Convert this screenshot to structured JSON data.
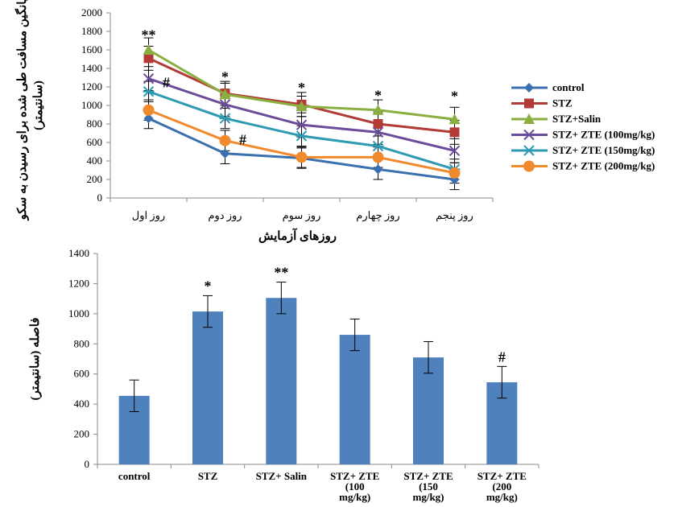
{
  "chart_data": [
    {
      "type": "line",
      "ylabel_lines": [
        "میانگین مسافت طی شده برای رسیدن به سکو",
        "(سانتیمتر)"
      ],
      "xlabel": "روزهای آزمایش",
      "ylim": [
        0,
        2000
      ],
      "yticks": [
        0,
        200,
        400,
        600,
        800,
        1000,
        1200,
        1400,
        1600,
        1800,
        2000
      ],
      "categories": [
        "روز اول",
        "روز دوم",
        "روز سوم",
        "روز چهارم",
        "روز پنجم"
      ],
      "legend_position": "right",
      "series": [
        {
          "name": "control",
          "color": "#3A6FB0",
          "marker": "diamond",
          "values": [
            860,
            480,
            430,
            310,
            200
          ],
          "errors": [
            110,
            110,
            110,
            110,
            110
          ]
        },
        {
          "name": "STZ",
          "color": "#B23B38",
          "marker": "square",
          "values": [
            1510,
            1130,
            1010,
            800,
            710
          ],
          "errors": [
            130,
            130,
            130,
            130,
            130
          ]
        },
        {
          "name": "STZ+Salin",
          "color": "#8AAE3F",
          "marker": "triangle",
          "values": [
            1600,
            1120,
            990,
            950,
            850
          ],
          "errors": [
            130,
            120,
            110,
            110,
            130
          ]
        },
        {
          "name": "STZ+ ZTE (100mg/kg)",
          "color": "#6B4C9A",
          "marker": "x",
          "values": [
            1290,
            1010,
            790,
            710,
            510
          ],
          "errors": [
            130,
            130,
            130,
            130,
            130
          ]
        },
        {
          "name": "STZ+ ZTE (150mg/kg)",
          "color": "#2F9BB3",
          "marker": "star",
          "values": [
            1150,
            860,
            670,
            560,
            310
          ],
          "errors": [
            110,
            110,
            110,
            110,
            110
          ]
        },
        {
          "name": "STZ+ ZTE (200mg/kg)",
          "color": "#F08A2C",
          "marker": "circle",
          "values": [
            950,
            620,
            440,
            440,
            270
          ],
          "errors": [
            110,
            110,
            110,
            110,
            110
          ]
        }
      ],
      "annotations": [
        {
          "category": 0,
          "value": 1760,
          "text": "**"
        },
        {
          "category": 1,
          "value": 1310,
          "text": "*"
        },
        {
          "category": 2,
          "value": 1190,
          "text": "*"
        },
        {
          "category": 3,
          "value": 1110,
          "text": "*"
        },
        {
          "category": 4,
          "value": 1100,
          "text": "*"
        },
        {
          "category": 0,
          "value": 1250,
          "text": "#",
          "offset": "right"
        },
        {
          "category": 1,
          "value": 630,
          "text": "#",
          "offset": "right"
        }
      ]
    },
    {
      "type": "bar",
      "ylabel": "فاصله (سانتیمتر)",
      "ylim": [
        0,
        1400
      ],
      "yticks": [
        0,
        200,
        400,
        600,
        800,
        1000,
        1200,
        1400
      ],
      "color": "#4F81BD",
      "categories": [
        [
          "control"
        ],
        [
          "STZ"
        ],
        [
          "STZ+ Salin"
        ],
        [
          "STZ+ ZTE",
          "(100",
          "mg/kg)"
        ],
        [
          "STZ+ ZTE",
          "(150",
          "mg/kg)"
        ],
        [
          "STZ+ ZTE",
          "(200",
          "mg/kg)"
        ]
      ],
      "values": [
        455,
        1015,
        1105,
        860,
        710,
        545
      ],
      "errors": [
        105,
        105,
        105,
        105,
        105,
        105
      ],
      "annotations": [
        "",
        "*",
        "**",
        "",
        "",
        "#"
      ]
    }
  ]
}
